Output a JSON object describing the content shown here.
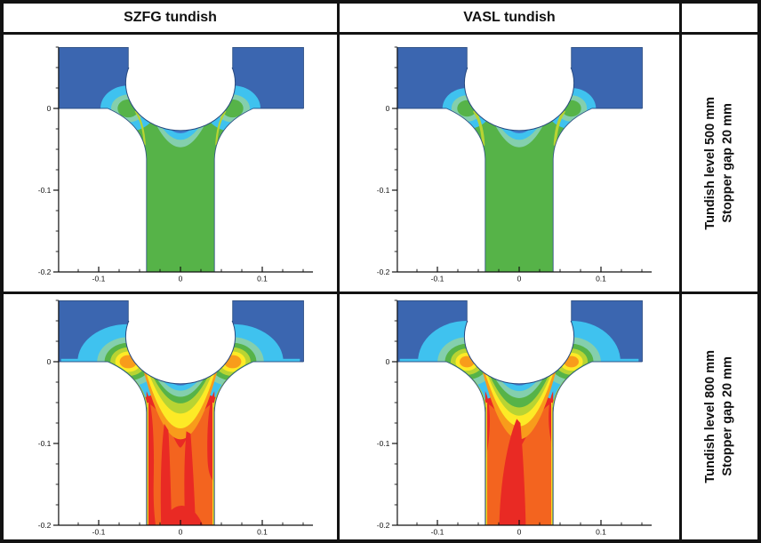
{
  "table": {
    "col_headers": [
      "SZFG tundish",
      "VASL tundish"
    ],
    "corner_header": "",
    "row_labels": [
      {
        "line1": "Tundish level 500 mm",
        "line2": "Stopper gap 20 mm"
      },
      {
        "line1": "Tundish level 800 mm",
        "line2": "Stopper gap 20 mm"
      }
    ]
  },
  "axes": {
    "x_tick_labels": [
      "-0.1",
      "0",
      "0.1"
    ],
    "x_tick_values": [
      -0.1,
      0,
      0.1
    ],
    "y_tick_labels": [
      "0",
      "-0.1",
      "-0.2"
    ],
    "y_tick_values": [
      0,
      -0.1,
      -0.2
    ],
    "minor_step": 0.025,
    "x_minor_range": [
      -0.125,
      0.15
    ],
    "y_minor_range": [
      -0.2,
      0.075
    ]
  },
  "palette": {
    "blue": "#3b66b0",
    "blue2": "#3f78ca",
    "cyan": "#3fc2ef",
    "teal": "#84cfad",
    "green": "#56b348",
    "ylwgreen": "#b8d433",
    "yellow": "#fdea26",
    "orange1": "#f89c1b",
    "orange2": "#f3641f",
    "red": "#e92a24",
    "outline": "#27497f",
    "axis": "#111111"
  },
  "chart_data": [
    {
      "type": "heatmap",
      "title": "SZFG tundish",
      "condition": "Tundish level 500 mm, Stopper gap 20 mm",
      "xlim": [
        -0.149,
        0.162
      ],
      "ylim": [
        -0.2,
        0.075
      ],
      "x_ticks": [
        -0.1,
        0,
        0.1
      ],
      "y_ticks": [
        0,
        -0.1,
        -0.2
      ],
      "colorbar": "none shown (rainbow velocity-magnitude contours)",
      "velocity_pattern": "Bath regions dark blue (slow); small cyan/teal acceleration fans at the nozzle-well corners; moderate uniform green flow through stopper gap and down the whole SEN bore; thin blue/cyan/teal wake bands directly under the stopper tip; faint yellow-green streaks along the converging walls.",
      "render_variant": "szfg_low"
    },
    {
      "type": "heatmap",
      "title": "VASL tundish",
      "condition": "Tundish level 500 mm, Stopper gap 20 mm",
      "xlim": [
        -0.149,
        0.162
      ],
      "ylim": [
        -0.2,
        0.075
      ],
      "x_ticks": [
        -0.1,
        0,
        0.1
      ],
      "y_ticks": [
        0,
        -0.1,
        -0.2
      ],
      "colorbar": "none shown (rainbow velocity-magnitude contours)",
      "velocity_pattern": "Very similar to SZFG at 500 mm: green flow in gap and bore, slightly smaller cyan corner fans, stronger yellow-green streaks on the converging walls, blue/cyan/teal wake under the stopper tip.",
      "render_variant": "vasl_low"
    },
    {
      "type": "heatmap",
      "title": "SZFG tundish",
      "condition": "Tundish level 800 mm, Stopper gap 20 mm",
      "xlim": [
        -0.149,
        0.162
      ],
      "ylim": [
        -0.2,
        0.075
      ],
      "x_ticks": [
        -0.1,
        0,
        0.1
      ],
      "y_ticks": [
        0,
        -0.1,
        -0.2
      ],
      "colorbar": "none shown (rainbow velocity-magnitude contours)",
      "velocity_pattern": "High-velocity case: large cyan/teal/green/yellow fans at the well corners, red jet through the stopper gap, rainbow wake (blue-cyan-teal-green-yellow V) under the stopper tip, orange bore with several red high-speed fingers along the walls and centre merging toward the outlet.",
      "render_variant": "szfg_high"
    },
    {
      "type": "heatmap",
      "title": "VASL tundish",
      "condition": "Tundish level 800 mm, Stopper gap 20 mm",
      "xlim": [
        -0.149,
        0.162
      ],
      "ylim": [
        -0.2,
        0.075
      ],
      "x_ticks": [
        -0.1,
        0,
        0.1
      ],
      "y_ticks": [
        0,
        -0.1,
        -0.2
      ],
      "colorbar": "none shown (rainbow velocity-magnitude contours)",
      "velocity_pattern": "High-velocity case: red jet through the gap, rainbow wake under the stopper with a thicker green band, orange bore with one broad central red core widening toward the outlet and short red wall streaks near the bore entrance.",
      "render_variant": "vasl_high"
    }
  ]
}
